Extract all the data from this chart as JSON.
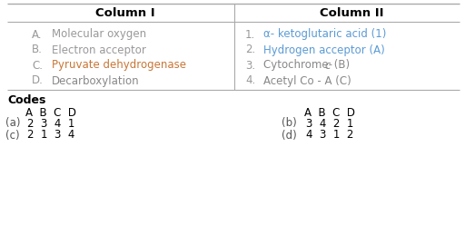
{
  "col1_header": "Column I",
  "col2_header": "Column II",
  "col1_items": [
    [
      "A.",
      "Molecular oxygen"
    ],
    [
      "B.",
      "Electron acceptor"
    ],
    [
      "C.",
      "Pyruvate dehydrogenase"
    ],
    [
      "D.",
      "Decarboxylation"
    ]
  ],
  "col1_colors": [
    "#999999",
    "#999999",
    "#c87637",
    "#888888"
  ],
  "col2_items": [
    [
      "1.",
      "α- ketoglutaric acid (1)"
    ],
    [
      "2.",
      "Hydrogen acceptor (A)"
    ],
    [
      "3.",
      "Cytochrome- c (B)"
    ],
    [
      "4.",
      "Acetyl Co - A (C)"
    ]
  ],
  "col2_text_colors": [
    "#5b9bd5",
    "#5b9bd5",
    "#888888",
    "#888888"
  ],
  "header_color": "#000000",
  "item_letter_color": "#999999",
  "bg_color": "#ffffff",
  "line_color": "#aaaaaa",
  "codes_label": "Codes",
  "abcd_label": "A  B  C  D",
  "options_left_label": [
    "(a)",
    "(c)"
  ],
  "options_left_vals": [
    "2  3  4  1",
    "2  1  3  4"
  ],
  "options_right_label": [
    "(b)",
    "(d)"
  ],
  "options_right_vals": [
    "3  4  2  1",
    "4  3  1  2"
  ],
  "codes_color": "#000000",
  "option_label_color": "#555555"
}
